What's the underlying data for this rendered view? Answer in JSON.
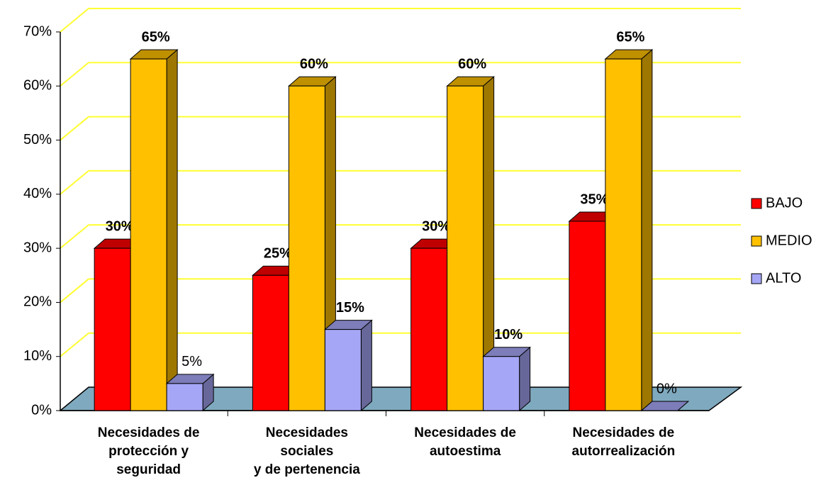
{
  "chart_data": {
    "type": "bar3d",
    "categories": [
      "Necesidades de\nprotección y\nseguridad",
      "Necesidades\nsociales\ny de pertenencia",
      "Necesidades de\nautoestima",
      "Necesidades de\nautorrealización"
    ],
    "series": [
      {
        "name": "BAJO",
        "color": "#ff0000",
        "values": [
          30,
          25,
          30,
          35
        ],
        "value_labels": [
          "30%",
          "25%",
          "30%",
          "35%"
        ]
      },
      {
        "name": "MEDIO",
        "color": "#ffc000",
        "values": [
          65,
          60,
          60,
          65
        ],
        "value_labels": [
          "65%",
          "60%",
          "60%",
          "65%"
        ]
      },
      {
        "name": "ALTO",
        "color": "#a6a6f7",
        "values": [
          5,
          15,
          10,
          0
        ],
        "value_labels": [
          "5%",
          "15%",
          "10%",
          "0%"
        ]
      }
    ],
    "ylim": [
      0,
      70
    ],
    "yticks": [
      {
        "value": 0,
        "label": "0%"
      },
      {
        "value": 10,
        "label": "10%"
      },
      {
        "value": 20,
        "label": "20%"
      },
      {
        "value": 30,
        "label": "30%"
      },
      {
        "value": 40,
        "label": "40%"
      },
      {
        "value": 50,
        "label": "50%"
      },
      {
        "value": 60,
        "label": "60%"
      },
      {
        "value": 70,
        "label": "70%"
      }
    ],
    "grid": true,
    "legend": "right"
  }
}
